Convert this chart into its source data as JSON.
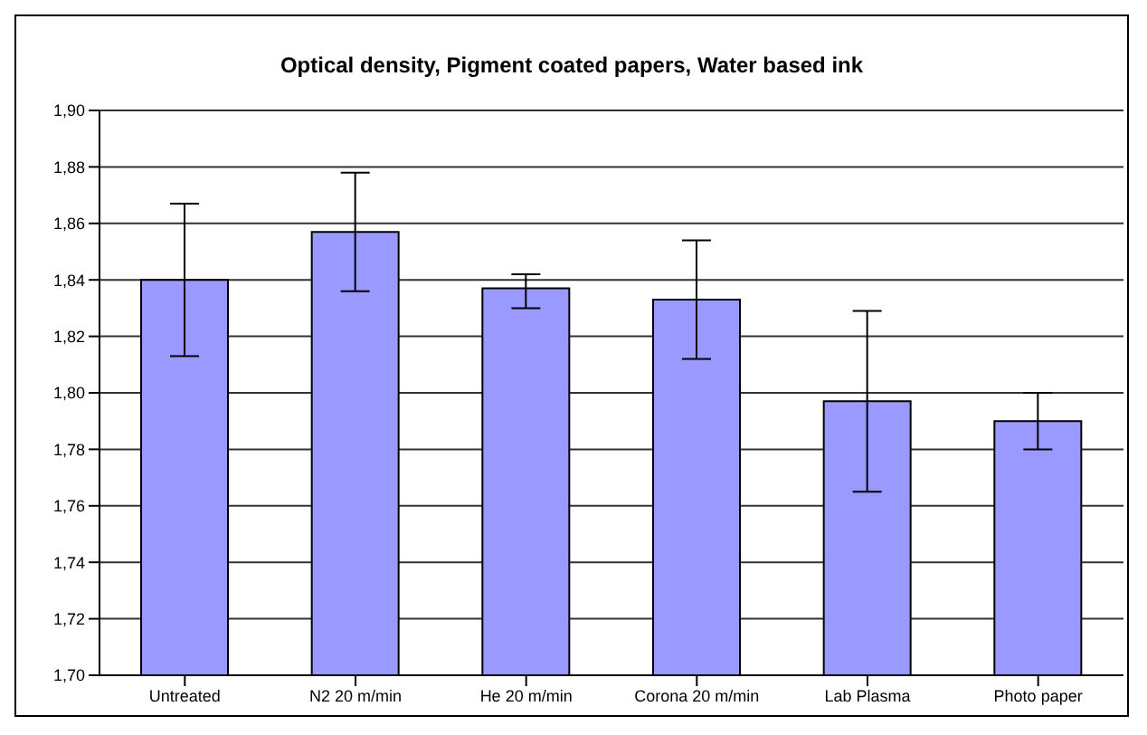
{
  "chart_data": {
    "type": "bar",
    "title": "Optical density, Pigment coated papers, Water based ink",
    "categories": [
      "Untreated",
      "N2 20 m/min",
      "He 20 m/min",
      "Corona 20 m/min",
      "Lab Plasma",
      "Photo paper"
    ],
    "values": [
      1.84,
      1.857,
      1.837,
      1.833,
      1.797,
      1.79
    ],
    "errors": [
      [
        1.813,
        1.867
      ],
      [
        1.836,
        1.878
      ],
      [
        1.83,
        1.842
      ],
      [
        1.812,
        1.854
      ],
      [
        1.765,
        1.829
      ],
      [
        1.78,
        1.8
      ]
    ],
    "color": "#9999ff",
    "ylim": [
      1.7,
      1.9
    ],
    "yticks": [
      {
        "value": 1.7,
        "label": "1,70"
      },
      {
        "value": 1.72,
        "label": "1,72"
      },
      {
        "value": 1.74,
        "label": "1,74"
      },
      {
        "value": 1.76,
        "label": "1,76"
      },
      {
        "value": 1.78,
        "label": "1,78"
      },
      {
        "value": 1.8,
        "label": "1,80"
      },
      {
        "value": 1.82,
        "label": "1,82"
      },
      {
        "value": 1.84,
        "label": "1,84"
      },
      {
        "value": 1.86,
        "label": "1,86"
      },
      {
        "value": 1.88,
        "label": "1,88"
      },
      {
        "value": 1.9,
        "label": "1,90"
      }
    ],
    "grid": "y"
  }
}
